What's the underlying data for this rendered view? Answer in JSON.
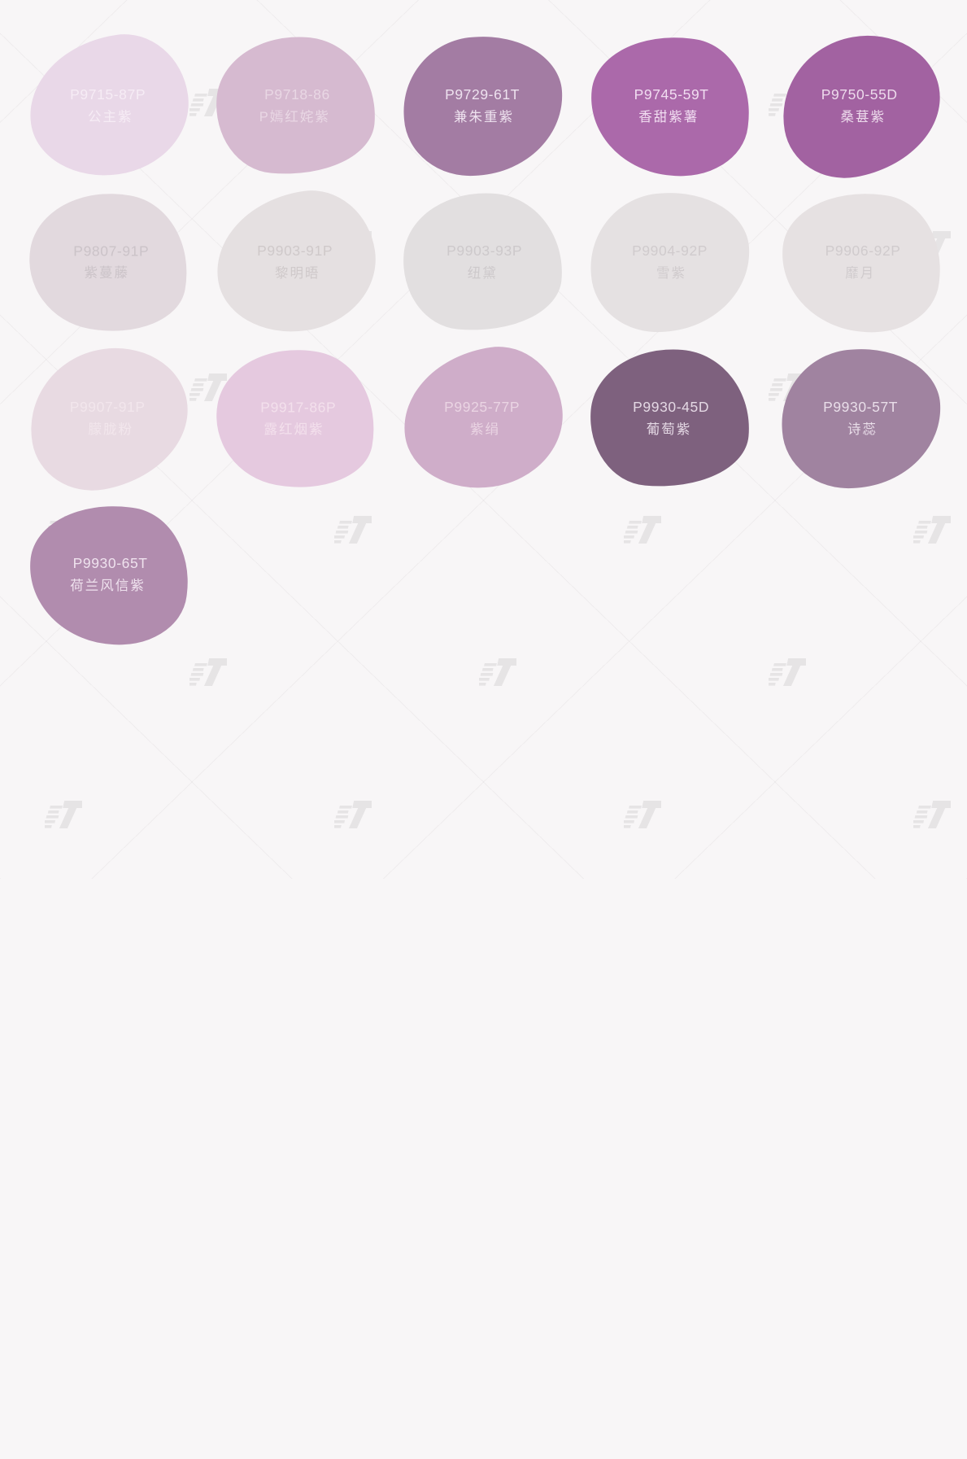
{
  "page": {
    "background_color": "#f8f6f7",
    "description_labels": {
      "swatch_kind": "paint-color-blob"
    }
  },
  "watermark": {
    "icon": "logo-watermark-icon",
    "color": "#d9d6d8"
  },
  "swatches": [
    {
      "code": "P9715-87P",
      "name": "公主紫",
      "color": "#e9d8e8",
      "text_color": "#f6ecf5"
    },
    {
      "code": "P9718-86",
      "name": "P嫣红姹紫",
      "color": "#d6bad0",
      "text_color": "#e9d7e4"
    },
    {
      "code": "P9729-61T",
      "name": "兼朱重紫",
      "color": "#a37ca3",
      "text_color": "#eee2ef"
    },
    {
      "code": "P9745-59T",
      "name": "香甜紫薯",
      "color": "#ab69aa",
      "text_color": "#f1ddf1"
    },
    {
      "code": "P9750-55D",
      "name": "桑葚紫",
      "color": "#a262a1",
      "text_color": "#eddbec"
    },
    {
      "code": "P9807-91P",
      "name": "紫蔓藤",
      "color": "#e2d9de",
      "text_color": "#cbc3c8"
    },
    {
      "code": "P9903-91P",
      "name": "黎明晤",
      "color": "#e5e0e1",
      "text_color": "#cfc9ca"
    },
    {
      "code": "P9903-93P",
      "name": "纽黛",
      "color": "#e2dfe0",
      "text_color": "#cdc9cb"
    },
    {
      "code": "P9904-92P",
      "name": "雪紫",
      "color": "#e5e1e2",
      "text_color": "#d0cbcd"
    },
    {
      "code": "P9906-92P",
      "name": "靡月",
      "color": "#e6e1e2",
      "text_color": "#d0cbcd"
    },
    {
      "code": "P9907-91P",
      "name": "朦胧粉",
      "color": "#e8dae2",
      "text_color": "#f2e6ec"
    },
    {
      "code": "P9917-86P",
      "name": "露红烟紫",
      "color": "#e5c9df",
      "text_color": "#f3e0ec"
    },
    {
      "code": "P9925-77P",
      "name": "紫绢",
      "color": "#cfadc9",
      "text_color": "#ead4e3"
    },
    {
      "code": "P9930-45D",
      "name": "葡萄紫",
      "color": "#7e617e",
      "text_color": "#e4d8e4"
    },
    {
      "code": "P9930-57T",
      "name": "诗蕊",
      "color": "#a083a0",
      "text_color": "#e9dee9"
    },
    {
      "code": "P9930-65T",
      "name": "荷兰风信紫",
      "color": "#b18cae",
      "text_color": "#efe2ee"
    }
  ]
}
